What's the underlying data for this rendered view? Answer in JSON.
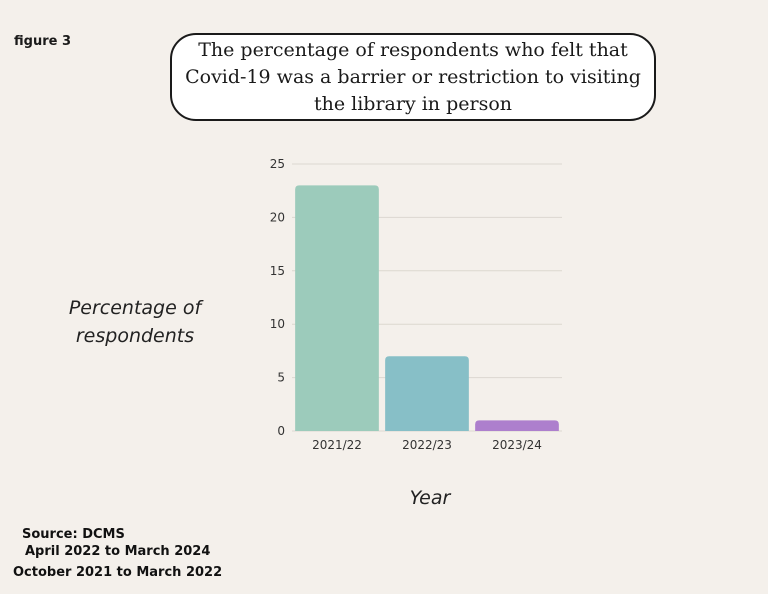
{
  "figure_label": "figure 3",
  "source_lines": [
    "Source: DCMS",
    "April 2022 to March 2024",
    "October 2021 to March 2022"
  ],
  "chart_data": {
    "type": "bar",
    "title": "The percentage of respondents who felt that Covid-19 was a barrier or restriction to visiting the library in person",
    "xlabel": "Year",
    "ylabel": "Percentage of respondents",
    "categories": [
      "2021/22",
      "2022/23",
      "2023/24"
    ],
    "values": [
      23,
      7,
      1
    ],
    "ylim": [
      0,
      25
    ],
    "yticks": [
      0,
      5,
      10,
      15,
      20,
      25
    ],
    "grid": true,
    "legend": "none",
    "colors": [
      "#9ccbbb",
      "#87bfc7",
      "#ad7fcd"
    ],
    "grid_color": "#dcd7d0"
  }
}
